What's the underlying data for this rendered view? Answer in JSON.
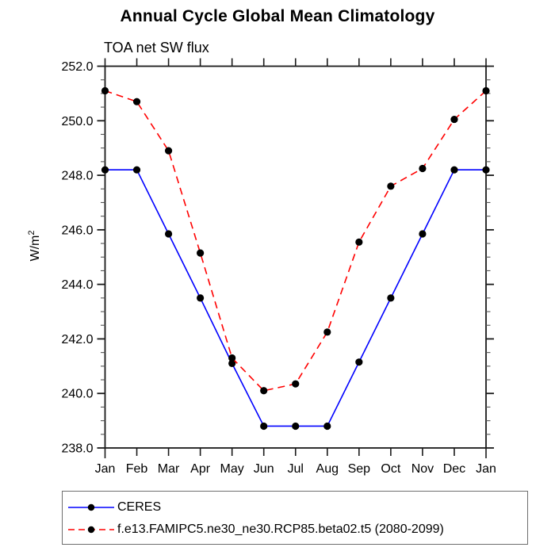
{
  "title": "Annual Cycle Global Mean Climatology",
  "subtitle": "TOA net SW flux",
  "chart_data": {
    "type": "line",
    "x_labels": [
      "Jan",
      "Feb",
      "Mar",
      "Apr",
      "May",
      "Jun",
      "Jul",
      "Aug",
      "Sep",
      "Oct",
      "Nov",
      "Dec",
      "Jan"
    ],
    "ylabel": "W/m²",
    "ylim": [
      238.0,
      252.0
    ],
    "ytick_step": 2.0,
    "ytick_labels": [
      "238.0",
      "240.0",
      "242.0",
      "244.0",
      "246.0",
      "248.0",
      "250.0",
      "252.0"
    ],
    "minor_tick_step": 0.5,
    "grid": false,
    "legend_position": "bottom-left-outside",
    "marker": "filled-circle",
    "marker_color": "#000000",
    "axis_color": "#1a1a1a",
    "series": [
      {
        "name": "CERES",
        "color": "#0000ff",
        "style": "solid",
        "values": [
          248.2,
          248.2,
          245.85,
          243.5,
          241.1,
          238.8,
          238.8,
          238.8,
          241.15,
          243.5,
          245.85,
          248.2,
          248.2
        ]
      },
      {
        "name": "f.e13.FAMIPC5.ne30_ne30.RCP85.beta02.t5 (2080-2099)",
        "color": "#ff0000",
        "style": "dashed",
        "values": [
          251.1,
          250.7,
          248.9,
          245.15,
          241.3,
          240.1,
          240.35,
          242.25,
          245.55,
          247.6,
          248.25,
          250.05,
          251.1
        ]
      }
    ]
  }
}
